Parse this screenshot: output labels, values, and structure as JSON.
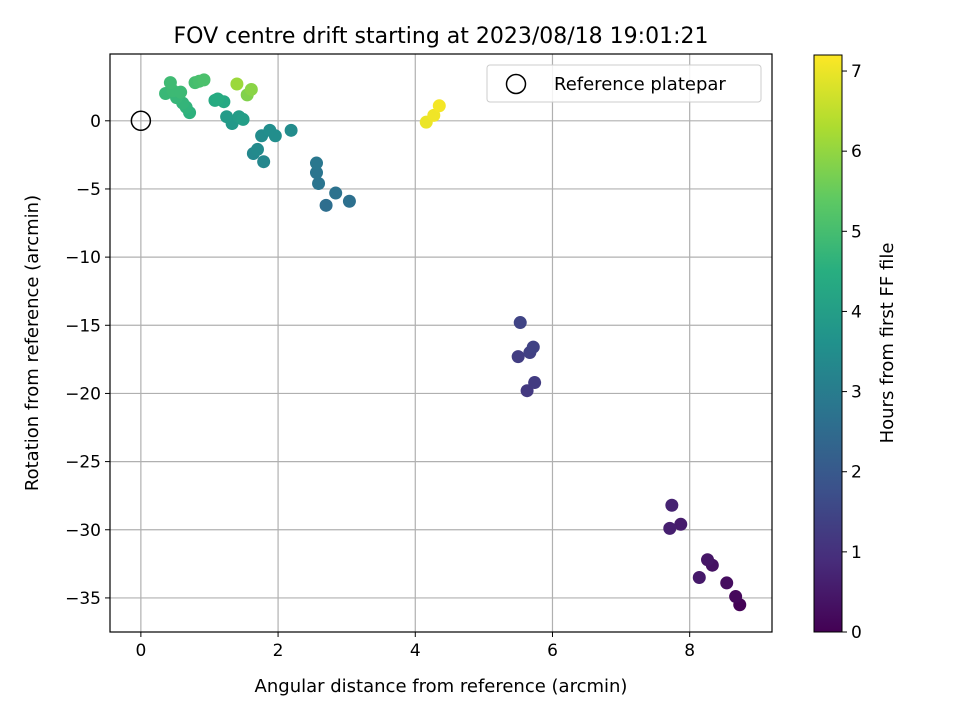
{
  "chart_data": {
    "type": "scatter",
    "title": "FOV centre drift starting at 2023/08/18 19:01:21",
    "xlabel": "Angular distance from reference (arcmin)",
    "ylabel": "Rotation from reference (arcmin)",
    "xlim": [
      -0.45,
      9.2
    ],
    "ylim": [
      -37.5,
      4.9
    ],
    "xticks": [
      0,
      2,
      4,
      6,
      8
    ],
    "yticks": [
      0,
      -5,
      -10,
      -15,
      -20,
      -25,
      -30,
      -35
    ],
    "xtick_labels": [
      "0",
      "2",
      "4",
      "6",
      "8"
    ],
    "ytick_labels": [
      "0",
      "−5",
      "−10",
      "−15",
      "−20",
      "−25",
      "−30",
      "−35"
    ],
    "grid": true,
    "legend": {
      "position": "top-right",
      "entries": [
        "Reference platepar"
      ]
    },
    "reference_point": {
      "x": 0,
      "y": 0,
      "label": "Reference platepar"
    },
    "colorbar": {
      "label": "Hours from first FF file",
      "range": [
        0,
        7.2
      ],
      "ticks": [
        0,
        1,
        2,
        3,
        4,
        5,
        6,
        7
      ],
      "tick_labels": [
        "0",
        "1",
        "2",
        "3",
        "4",
        "5",
        "6",
        "7"
      ],
      "colormap": "viridis"
    },
    "points": [
      {
        "x": 8.73,
        "y": -35.5,
        "c": 0.05
      },
      {
        "x": 8.67,
        "y": -34.9,
        "c": 0.15
      },
      {
        "x": 8.54,
        "y": -33.9,
        "c": 0.25
      },
      {
        "x": 8.33,
        "y": -32.6,
        "c": 0.35
      },
      {
        "x": 8.26,
        "y": -32.2,
        "c": 0.42
      },
      {
        "x": 8.14,
        "y": -33.5,
        "c": 0.5
      },
      {
        "x": 7.87,
        "y": -29.6,
        "c": 0.55
      },
      {
        "x": 7.71,
        "y": -29.9,
        "c": 0.62
      },
      {
        "x": 7.74,
        "y": -28.2,
        "c": 0.7
      },
      {
        "x": 5.63,
        "y": -19.8,
        "c": 1.2
      },
      {
        "x": 5.74,
        "y": -19.2,
        "c": 1.25
      },
      {
        "x": 5.5,
        "y": -17.3,
        "c": 1.3
      },
      {
        "x": 5.67,
        "y": -17.0,
        "c": 1.35
      },
      {
        "x": 5.72,
        "y": -16.6,
        "c": 1.4
      },
      {
        "x": 5.53,
        "y": -14.8,
        "c": 1.45
      },
      {
        "x": 2.7,
        "y": -6.2,
        "c": 2.6
      },
      {
        "x": 3.04,
        "y": -5.9,
        "c": 2.65
      },
      {
        "x": 2.84,
        "y": -5.3,
        "c": 2.7
      },
      {
        "x": 2.59,
        "y": -4.6,
        "c": 2.75
      },
      {
        "x": 2.56,
        "y": -3.8,
        "c": 2.8
      },
      {
        "x": 2.56,
        "y": -3.1,
        "c": 2.85
      },
      {
        "x": 1.79,
        "y": -3.0,
        "c": 3.3
      },
      {
        "x": 1.64,
        "y": -2.4,
        "c": 3.35
      },
      {
        "x": 1.7,
        "y": -2.1,
        "c": 3.4
      },
      {
        "x": 1.76,
        "y": -1.1,
        "c": 3.45
      },
      {
        "x": 1.96,
        "y": -1.1,
        "c": 3.5
      },
      {
        "x": 1.88,
        "y": -0.7,
        "c": 3.5
      },
      {
        "x": 2.19,
        "y": -0.7,
        "c": 3.45
      },
      {
        "x": 1.33,
        "y": -0.2,
        "c": 3.85
      },
      {
        "x": 1.25,
        "y": 0.3,
        "c": 3.9
      },
      {
        "x": 1.43,
        "y": 0.3,
        "c": 3.95
      },
      {
        "x": 1.49,
        "y": 0.1,
        "c": 4.0
      },
      {
        "x": 1.21,
        "y": 1.4,
        "c": 4.3
      },
      {
        "x": 1.08,
        "y": 1.5,
        "c": 4.35
      },
      {
        "x": 1.12,
        "y": 1.6,
        "c": 4.4
      },
      {
        "x": 0.71,
        "y": 0.6,
        "c": 4.6
      },
      {
        "x": 0.66,
        "y": 1.0,
        "c": 4.65
      },
      {
        "x": 0.61,
        "y": 1.3,
        "c": 4.7
      },
      {
        "x": 0.52,
        "y": 1.7,
        "c": 4.75
      },
      {
        "x": 0.36,
        "y": 2.0,
        "c": 4.8
      },
      {
        "x": 0.47,
        "y": 2.2,
        "c": 4.85
      },
      {
        "x": 0.58,
        "y": 2.1,
        "c": 4.85
      },
      {
        "x": 0.43,
        "y": 2.8,
        "c": 4.9
      },
      {
        "x": 0.79,
        "y": 2.8,
        "c": 5.0
      },
      {
        "x": 0.85,
        "y": 2.9,
        "c": 5.05
      },
      {
        "x": 0.92,
        "y": 3.0,
        "c": 5.1
      },
      {
        "x": 1.55,
        "y": 1.9,
        "c": 5.8
      },
      {
        "x": 1.61,
        "y": 2.3,
        "c": 5.9
      },
      {
        "x": 1.4,
        "y": 2.7,
        "c": 6.1
      },
      {
        "x": 4.16,
        "y": -0.1,
        "c": 7.0
      },
      {
        "x": 4.27,
        "y": 0.4,
        "c": 7.05
      },
      {
        "x": 4.35,
        "y": 1.1,
        "c": 7.1
      }
    ]
  }
}
